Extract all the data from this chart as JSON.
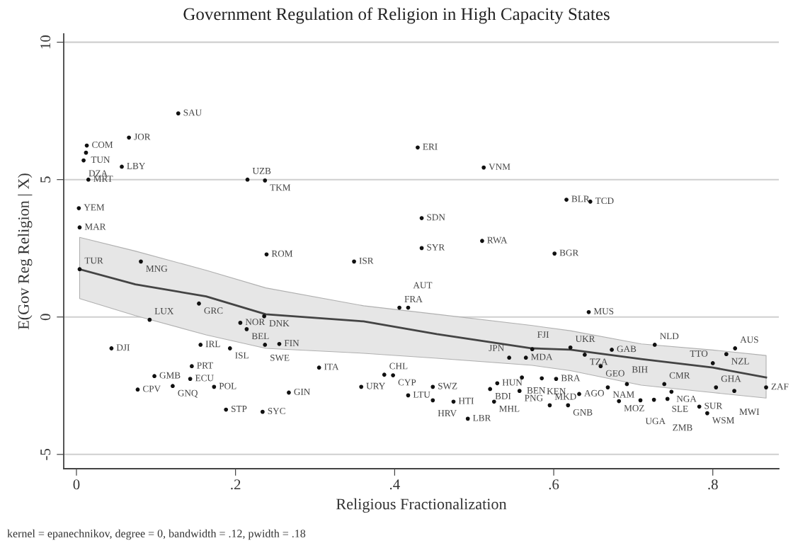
{
  "chart_data": {
    "type": "scatter",
    "title": "Government Regulation of Religion in High Capacity States",
    "xlabel": "Religious Fractionalization",
    "ylabel": "E(Gov Reg Religion | X)",
    "xlim": [
      -0.016,
      0.883
    ],
    "ylim": [
      -5.52,
      10.3
    ],
    "xticks": [
      {
        "value": 0,
        "label": "0"
      },
      {
        "value": 0.2,
        "label": ".2"
      },
      {
        "value": 0.4,
        "label": ".4"
      },
      {
        "value": 0.6,
        "label": ".6"
      },
      {
        "value": 0.8,
        "label": ".8"
      }
    ],
    "yticks": [
      -5,
      0,
      5,
      10
    ],
    "grid": "y",
    "legend": false,
    "series": [
      {
        "color": "#111111",
        "marker": "circle",
        "x": [
          0.128,
          0.066,
          0.013,
          0.012,
          0.009,
          0.057,
          0.015,
          0.215,
          0.237,
          0.003,
          0.004,
          0.081,
          0.004,
          0.239,
          0.154,
          0.092,
          0.236,
          0.206,
          0.214,
          0.429,
          0.512,
          0.616,
          0.646,
          0.434,
          0.434,
          0.51,
          0.601,
          0.349,
          0.406,
          0.417,
          0.644,
          0.044,
          0.156,
          0.193,
          0.237,
          0.255,
          0.145,
          0.098,
          0.143,
          0.077,
          0.121,
          0.173,
          0.305,
          0.267,
          0.188,
          0.234,
          0.387,
          0.398,
          0.358,
          0.448,
          0.417,
          0.448,
          0.474,
          0.492,
          0.544,
          0.565,
          0.529,
          0.52,
          0.525,
          0.56,
          0.557,
          0.573,
          0.621,
          0.639,
          0.673,
          0.727,
          0.659,
          0.828,
          0.817,
          0.8,
          0.585,
          0.603,
          0.595,
          0.618,
          0.632,
          0.668,
          0.692,
          0.739,
          0.748,
          0.682,
          0.709,
          0.726,
          0.743,
          0.783,
          0.793,
          0.804,
          0.827,
          0.867
        ],
        "values": [
          7.41,
          6.53,
          6.24,
          5.98,
          5.7,
          5.47,
          5.0,
          5.0,
          4.97,
          3.96,
          3.26,
          2.02,
          1.74,
          2.28,
          0.49,
          -0.1,
          0.03,
          -0.21,
          -0.44,
          6.17,
          5.44,
          4.27,
          4.2,
          3.6,
          2.51,
          2.77,
          2.31,
          2.02,
          0.34,
          0.34,
          0.18,
          -1.14,
          -1.01,
          -1.14,
          -1.01,
          -0.98,
          -1.79,
          -2.15,
          -2.25,
          -2.64,
          -2.51,
          -2.54,
          -1.84,
          -2.75,
          -3.37,
          -3.45,
          -2.1,
          -2.12,
          -2.54,
          -2.54,
          -2.85,
          -3.03,
          -3.08,
          -3.7,
          -1.48,
          -1.48,
          -2.41,
          -2.62,
          -3.08,
          -2.2,
          -2.69,
          -1.17,
          -1.11,
          -1.37,
          -1.19,
          -1.01,
          -1.79,
          -1.14,
          -1.35,
          -1.68,
          -2.23,
          -2.25,
          -3.21,
          -3.21,
          -2.8,
          -2.56,
          -2.44,
          -2.44,
          -2.72,
          -3.06,
          -3.03,
          -3.01,
          -2.98,
          -3.26,
          -3.5,
          -2.56,
          -2.69,
          -2.56
        ]
      },
      {
        "type": "line",
        "color": "#444444",
        "line_style": "solid",
        "marker": "none",
        "x": [
          0.004,
          0.074,
          0.163,
          0.238,
          0.361,
          0.453,
          0.573,
          0.621,
          0.71,
          0.8,
          0.867
        ],
        "values": [
          1.74,
          1.19,
          0.75,
          0.1,
          -0.16,
          -0.62,
          -1.14,
          -1.19,
          -1.53,
          -1.84,
          -2.2
        ],
        "upper": [
          2.9,
          2.4,
          1.7,
          1.06,
          0.41,
          0.1,
          -0.31,
          -0.5,
          -0.98,
          -1.2,
          -1.4
        ],
        "lower": [
          0.67,
          0.05,
          -0.65,
          -1.14,
          -1.32,
          -1.5,
          -1.76,
          -1.95,
          -2.48,
          -2.75,
          -2.95
        ]
      }
    ],
    "annotations": [
      {
        "text": "SAU",
        "x": 0.128,
        "y": 7.41
      },
      {
        "text": "JOR",
        "x": 0.066,
        "y": 6.53
      },
      {
        "text": "COM",
        "x": 0.013,
        "y": 6.24
      },
      {
        "text": "TUN",
        "x": 0.012,
        "y": 5.98
      },
      {
        "text": "DZA",
        "x": 0.009,
        "y": 5.7
      },
      {
        "text": "LBY",
        "x": 0.057,
        "y": 5.47
      },
      {
        "text": "MRT",
        "x": 0.015,
        "y": 5.0
      },
      {
        "text": "UZB",
        "x": 0.215,
        "y": 5.0
      },
      {
        "text": "TKM",
        "x": 0.237,
        "y": 4.97
      },
      {
        "text": "YEM",
        "x": 0.003,
        "y": 3.96
      },
      {
        "text": "MAR",
        "x": 0.004,
        "y": 3.26
      },
      {
        "text": "MNG",
        "x": 0.081,
        "y": 2.02
      },
      {
        "text": "TUR",
        "x": 0.004,
        "y": 1.74
      },
      {
        "text": "ROM",
        "x": 0.239,
        "y": 2.28
      },
      {
        "text": "GRC",
        "x": 0.154,
        "y": 0.49
      },
      {
        "text": "LUX",
        "x": 0.092,
        "y": -0.1
      },
      {
        "text": "DNK",
        "x": 0.236,
        "y": 0.03
      },
      {
        "text": "NOR",
        "x": 0.206,
        "y": -0.21
      },
      {
        "text": "BEL",
        "x": 0.214,
        "y": -0.44
      },
      {
        "text": "ERI",
        "x": 0.429,
        "y": 6.17
      },
      {
        "text": "VNM",
        "x": 0.512,
        "y": 5.44
      },
      {
        "text": "BLR",
        "x": 0.616,
        "y": 4.27
      },
      {
        "text": "TCD",
        "x": 0.646,
        "y": 4.2
      },
      {
        "text": "SDN",
        "x": 0.434,
        "y": 3.6
      },
      {
        "text": "SYR",
        "x": 0.434,
        "y": 2.51
      },
      {
        "text": "RWA",
        "x": 0.51,
        "y": 2.77
      },
      {
        "text": "BGR",
        "x": 0.601,
        "y": 2.31
      },
      {
        "text": "ISR",
        "x": 0.349,
        "y": 2.02
      },
      {
        "text": "FRA",
        "x": 0.406,
        "y": 0.34
      },
      {
        "text": "AUT",
        "x": 0.417,
        "y": 0.34
      },
      {
        "text": "MUS",
        "x": 0.644,
        "y": 0.18
      },
      {
        "text": "DJI",
        "x": 0.044,
        "y": -1.14
      },
      {
        "text": "IRL",
        "x": 0.156,
        "y": -1.01
      },
      {
        "text": "ISL",
        "x": 0.193,
        "y": -1.14
      },
      {
        "text": "SWE",
        "x": 0.237,
        "y": -1.01
      },
      {
        "text": "FIN",
        "x": 0.255,
        "y": -0.98
      },
      {
        "text": "PRT",
        "x": 0.145,
        "y": -1.79
      },
      {
        "text": "GMB",
        "x": 0.098,
        "y": -2.15
      },
      {
        "text": "ECU",
        "x": 0.143,
        "y": -2.25
      },
      {
        "text": "CPV",
        "x": 0.077,
        "y": -2.64
      },
      {
        "text": "GNQ",
        "x": 0.121,
        "y": -2.51
      },
      {
        "text": "POL",
        "x": 0.173,
        "y": -2.54
      },
      {
        "text": "ITA",
        "x": 0.305,
        "y": -1.84
      },
      {
        "text": "GIN",
        "x": 0.267,
        "y": -2.75
      },
      {
        "text": "STP",
        "x": 0.188,
        "y": -3.37
      },
      {
        "text": "SYC",
        "x": 0.234,
        "y": -3.45
      },
      {
        "text": "CHL",
        "x": 0.387,
        "y": -2.1
      },
      {
        "text": "CYP",
        "x": 0.398,
        "y": -2.12
      },
      {
        "text": "URY",
        "x": 0.358,
        "y": -2.54
      },
      {
        "text": "SWZ",
        "x": 0.448,
        "y": -2.54
      },
      {
        "text": "LTU",
        "x": 0.417,
        "y": -2.85
      },
      {
        "text": "HRV",
        "x": 0.448,
        "y": -3.03
      },
      {
        "text": "HTI",
        "x": 0.474,
        "y": -3.08
      },
      {
        "text": "LBR",
        "x": 0.492,
        "y": -3.7
      },
      {
        "text": "JPN",
        "x": 0.544,
        "y": -1.48
      },
      {
        "text": "MDA",
        "x": 0.565,
        "y": -1.48
      },
      {
        "text": "HUN",
        "x": 0.529,
        "y": -2.41
      },
      {
        "text": "BDI",
        "x": 0.52,
        "y": -2.62
      },
      {
        "text": "MHL",
        "x": 0.525,
        "y": -3.08
      },
      {
        "text": "BEN",
        "x": 0.56,
        "y": -2.2
      },
      {
        "text": "PNG",
        "x": 0.557,
        "y": -2.69
      },
      {
        "text": "FJI",
        "x": 0.573,
        "y": -1.17
      },
      {
        "text": "UKR",
        "x": 0.621,
        "y": -1.11
      },
      {
        "text": "TZA",
        "x": 0.639,
        "y": -1.37
      },
      {
        "text": "GAB",
        "x": 0.673,
        "y": -1.19
      },
      {
        "text": "NLD",
        "x": 0.727,
        "y": -1.01
      },
      {
        "text": "GEO",
        "x": 0.659,
        "y": -1.79
      },
      {
        "text": "AUS",
        "x": 0.828,
        "y": -1.14
      },
      {
        "text": "NZL",
        "x": 0.817,
        "y": -1.35
      },
      {
        "text": "TTO",
        "x": 0.8,
        "y": -1.68
      },
      {
        "text": "KEN",
        "x": 0.585,
        "y": -2.23
      },
      {
        "text": "BRA",
        "x": 0.603,
        "y": -2.25
      },
      {
        "text": "MKD",
        "x": 0.595,
        "y": -3.21
      },
      {
        "text": "GNB",
        "x": 0.618,
        "y": -3.21
      },
      {
        "text": "AGO",
        "x": 0.632,
        "y": -2.8
      },
      {
        "text": "NAM",
        "x": 0.668,
        "y": -2.56
      },
      {
        "text": "BIH",
        "x": 0.692,
        "y": -2.44
      },
      {
        "text": "CMR",
        "x": 0.739,
        "y": -2.44
      },
      {
        "text": "NGA",
        "x": 0.748,
        "y": -2.72
      },
      {
        "text": "MOZ",
        "x": 0.682,
        "y": -3.06
      },
      {
        "text": "UGA",
        "x": 0.709,
        "y": -3.03
      },
      {
        "text": "SLE",
        "x": 0.726,
        "y": -3.01
      },
      {
        "text": "ZMB",
        "x": 0.743,
        "y": -2.98
      },
      {
        "text": "SUR",
        "x": 0.783,
        "y": -3.26
      },
      {
        "text": "WSM",
        "x": 0.793,
        "y": -3.5
      },
      {
        "text": "GHA",
        "x": 0.804,
        "y": -2.56
      },
      {
        "text": "MWI",
        "x": 0.827,
        "y": -2.69
      },
      {
        "text": "ZAF",
        "x": 0.867,
        "y": -2.56
      },
      "kernel = epanechnikov, degree = 0, bandwidth = .12, pwidth = .18"
    ]
  }
}
